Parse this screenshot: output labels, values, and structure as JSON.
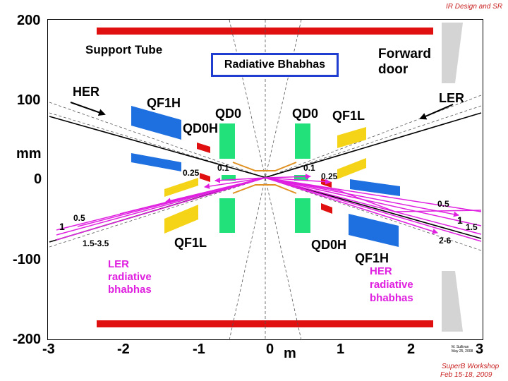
{
  "header": {
    "top_right": "IR Design and SR"
  },
  "footer": {
    "line1": "SuperB Workshop",
    "line2": "Feb 15-18, 2009"
  },
  "axes": {
    "y_ticks": [
      "200",
      "100",
      "0",
      "-100",
      "-200"
    ],
    "y_unit": "mm",
    "x_ticks": [
      "-3",
      "-2",
      "-1",
      "0",
      "1",
      "2",
      "3"
    ],
    "x_unit": "m"
  },
  "labels": {
    "support_tube": "Support Tube",
    "radiative_bhabhas": "Radiative Bhabhas",
    "forward_door_line1": "Forward",
    "forward_door_line2": "door",
    "her": "HER",
    "ler": "LER",
    "qf1h_top": "QF1H",
    "qd0_left": "QD0",
    "qd0h_top": "QD0H",
    "qd0_right": "QD0",
    "qf1l_top": "QF1L",
    "qf1l_bottom": "QF1L",
    "qd0h_bottom": "QD0H",
    "qf1h_bottom": "QF1H"
  },
  "values": {
    "v_025_left": "0.25",
    "v_01_left": "0.1",
    "v_01_right": "0.1",
    "v_025_right": "0.25",
    "v_05_right": "0.5",
    "v_1_right": "1",
    "v_15_right": "1.5",
    "v_26": "2-6",
    "v_1_left": "1",
    "v_05_left": "0.5",
    "v_15_35": "1.5-3.5"
  },
  "ler_radiative": {
    "line1": "LER",
    "line2": "radiative",
    "line3": "bhabhas"
  },
  "her_radiative": {
    "line1": "HER",
    "line2": "radiative",
    "line3": "bhabhas"
  },
  "credit": {
    "line1": "M. Sullivan",
    "line2": "May 25, 2008"
  },
  "colors": {
    "support_tube": "#e01010",
    "quad_blue": "#1e6fe0",
    "quad_green": "#22e07a",
    "quad_yellow": "#f5d418",
    "magenta": "#e020e0",
    "door_gray": "#d4d4d4",
    "box_border": "#1f3ecf"
  }
}
